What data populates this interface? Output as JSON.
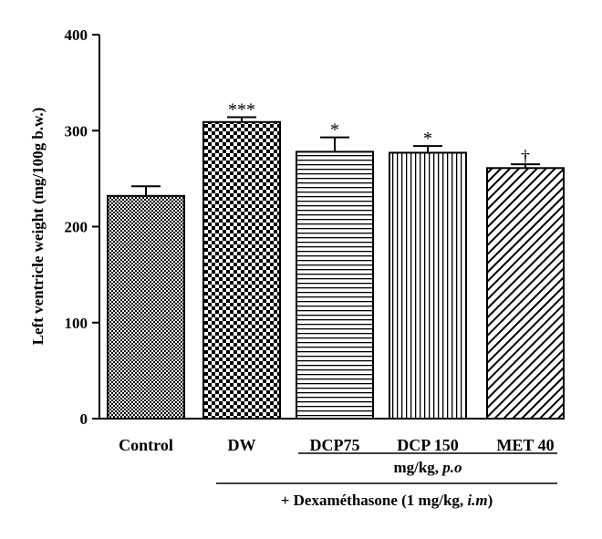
{
  "chart_data": {
    "type": "bar",
    "ylabel": "Left ventricle weight (mg/100g b.w.)",
    "xlabel": "",
    "ylim": [
      0,
      400
    ],
    "yticks": [
      0,
      100,
      200,
      300,
      400
    ],
    "categories": [
      "Control",
      "DW",
      "DCP75",
      "DCP 150",
      "MET 40"
    ],
    "values": [
      232,
      309,
      278,
      277,
      261
    ],
    "errors": [
      10,
      5,
      15,
      7,
      4
    ],
    "annotations": [
      "",
      "***",
      "*",
      "*",
      "†"
    ],
    "patterns": [
      "fine-check",
      "checkerboard",
      "horizontal-lines",
      "vertical-lines",
      "diagonal-lines"
    ],
    "group_labels": {
      "dose": "mg/kg, p.o",
      "treatment": "+ Dexaméthasone (1 mg/kg, i.m)"
    },
    "grid": false,
    "legend": "none",
    "colors": {
      "bar_fill": "#ffffff",
      "ink": "#000000"
    }
  }
}
